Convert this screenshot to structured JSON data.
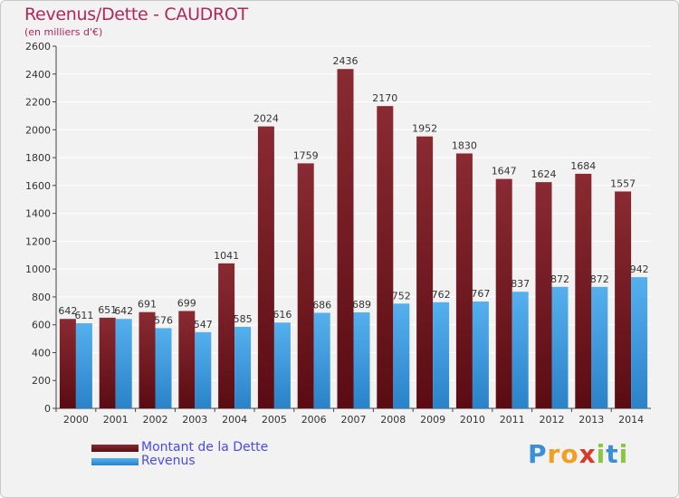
{
  "title": "Revenus/Dette - CAUDROT",
  "subtitle": "(en milliers d'€)",
  "logo": {
    "text": "Proxiti",
    "letters": [
      {
        "ch": "P",
        "color": "#3a8fd6"
      },
      {
        "ch": "r",
        "color": "#f0a020"
      },
      {
        "ch": "o",
        "color": "#f0a020"
      },
      {
        "ch": "x",
        "color": "#d83a2a"
      },
      {
        "ch": "i",
        "color": "#8cc63f"
      },
      {
        "ch": "t",
        "color": "#3a8fd6"
      },
      {
        "ch": "i",
        "color": "#8cc63f"
      }
    ]
  },
  "colors": {
    "dette": "#7a1c24",
    "revenus": "#3f9ce0",
    "title": "#b5255a",
    "legend_text": "#4a4af0"
  },
  "legend": [
    {
      "label": "Montant de la Dette",
      "series": "dette"
    },
    {
      "label": "Revenus",
      "series": "revenus"
    }
  ],
  "chart_data": {
    "type": "bar",
    "title": "Revenus/Dette - CAUDROT",
    "subtitle": "(en milliers d'€)",
    "categories": [
      "2000",
      "2001",
      "2002",
      "2003",
      "2004",
      "2005",
      "2006",
      "2007",
      "2008",
      "2009",
      "2010",
      "2011",
      "2012",
      "2013",
      "2014"
    ],
    "series": [
      {
        "name": "Montant de la Dette",
        "values": [
          642,
          651,
          691,
          699,
          1041,
          2024,
          1759,
          2436,
          2170,
          1952,
          1830,
          1647,
          1624,
          1684,
          1557
        ]
      },
      {
        "name": "Revenus",
        "values": [
          611,
          642,
          576,
          547,
          585,
          616,
          686,
          689,
          752,
          762,
          767,
          837,
          872,
          872,
          942
        ]
      }
    ],
    "ylim": [
      0,
      2600
    ],
    "yticks": [
      0,
      200,
      400,
      600,
      800,
      1000,
      1200,
      1400,
      1600,
      1800,
      2000,
      2200,
      2400,
      2600
    ],
    "grid": true,
    "legend_position": "bottom-left"
  }
}
